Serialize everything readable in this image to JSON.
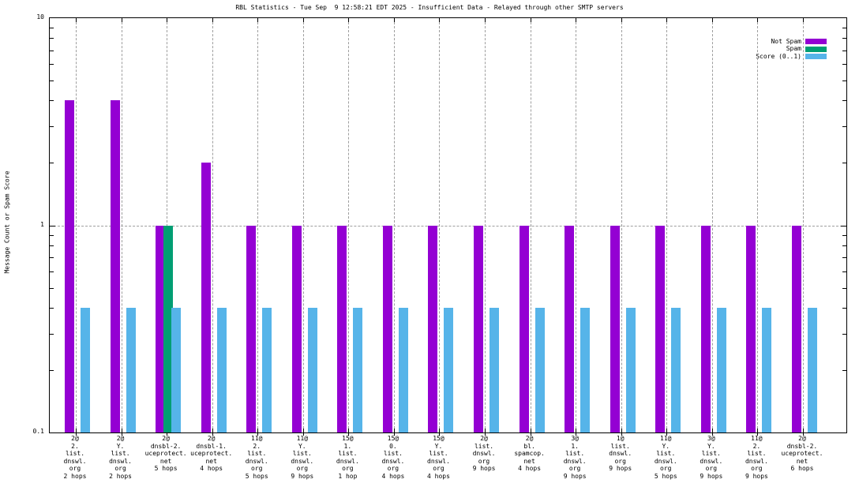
{
  "title": "RBL Statistics - Tue Sep  9 12:58:21 EDT 2025 - Insufficient Data - Relayed through other SMTP servers",
  "y_axis_title": "Message Count or Spam Score",
  "chart_data": {
    "type": "bar",
    "title": "RBL Statistics - Tue Sep  9 12:58:21 EDT 2025 - Insufficient Data - Relayed through other SMTP servers",
    "ylabel": "Message Count or Spam Score",
    "xlabel": "",
    "y_scale": "log10",
    "ylim": [
      0.1,
      10
    ],
    "ytick_labels": [
      {
        "value": 10,
        "label": "10"
      },
      {
        "value": 1,
        "label": "1"
      },
      {
        "value": 0.1,
        "label": "0.1"
      }
    ],
    "grid": true,
    "legend_position": "top-right-inside",
    "categories": [
      [
        "2@",
        "2.",
        "list.",
        "dnswl.",
        "org",
        "2 hops"
      ],
      [
        "2@",
        "Y.",
        "list.",
        "dnswl.",
        "org",
        "2 hops"
      ],
      [
        "2@",
        "dnsbl-2.",
        "uceprotect.",
        "net",
        "5 hops"
      ],
      [
        "2@",
        "dnsbl-1.",
        "uceprotect.",
        "net",
        "4 hops"
      ],
      [
        "11@",
        "2.",
        "list.",
        "dnswl.",
        "org",
        "5 hops"
      ],
      [
        "11@",
        "Y.",
        "list.",
        "dnswl.",
        "org",
        "9 hops"
      ],
      [
        "15@",
        "1.",
        "list.",
        "dnswl.",
        "org",
        "1 hop"
      ],
      [
        "15@",
        "0.",
        "list.",
        "dnswl.",
        "org",
        "4 hops"
      ],
      [
        "15@",
        "Y.",
        "list.",
        "dnswl.",
        "org",
        "4 hops"
      ],
      [
        "2@",
        "list.",
        "dnswl.",
        "org",
        "9 hops"
      ],
      [
        "2@",
        "bl.",
        "spamcop.",
        "net",
        "4 hops"
      ],
      [
        "3@",
        "1.",
        "list.",
        "dnswl.",
        "org",
        "9 hops"
      ],
      [
        "1@",
        "list.",
        "dnswl.",
        "org",
        "9 hops"
      ],
      [
        "11@",
        "Y.",
        "list.",
        "dnswl.",
        "org",
        "5 hops"
      ],
      [
        "3@",
        "Y.",
        "list.",
        "dnswl.",
        "org",
        "9 hops"
      ],
      [
        "11@",
        "2.",
        "list.",
        "dnswl.",
        "org",
        "9 hops"
      ],
      [
        "2@",
        "dnsbl-2.",
        "uceprotect.",
        "net",
        "6 hops"
      ]
    ],
    "series": [
      {
        "name": "Not Spam",
        "color": "#9400d3",
        "values": [
          4,
          4,
          1,
          2,
          1,
          1,
          1,
          1,
          1,
          1,
          1,
          1,
          1,
          1,
          1,
          1,
          1
        ]
      },
      {
        "name": "Spam",
        "color": "#009e73",
        "values": [
          null,
          null,
          1,
          null,
          null,
          null,
          null,
          null,
          null,
          null,
          null,
          null,
          null,
          null,
          null,
          null,
          null
        ]
      },
      {
        "name": "Score (0..1)",
        "color": "#56b4e9",
        "values": [
          0.4,
          0.4,
          0.4,
          0.4,
          0.4,
          0.4,
          0.4,
          0.4,
          0.4,
          0.4,
          0.4,
          0.4,
          0.4,
          0.4,
          0.4,
          0.4,
          0.4
        ]
      }
    ],
    "grid_color": "#9e9e9e",
    "axis_color": "#000000"
  }
}
